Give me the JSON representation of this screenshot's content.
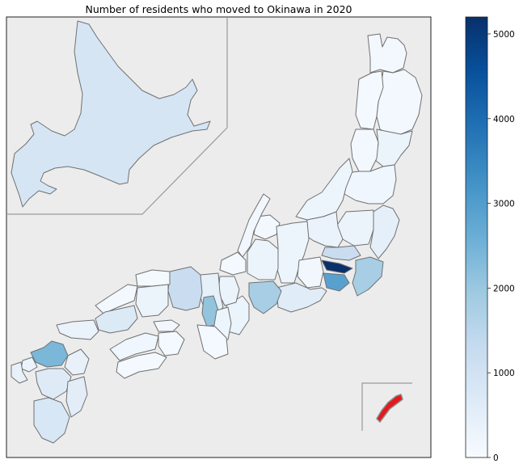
{
  "title": "Number of residents who moved to Okinawa in 2020",
  "colorbar": {
    "min": 0,
    "max": 5200,
    "ticks": [
      "0",
      "1000",
      "2000",
      "3000",
      "4000",
      "5000"
    ],
    "tick_values": [
      0,
      1000,
      2000,
      3000,
      4000,
      5000
    ],
    "colormap": "Blues",
    "colormap_stops": [
      "#f7fbff",
      "#deebf7",
      "#c6dbef",
      "#9ecae1",
      "#6baed6",
      "#4292c6",
      "#2171b5",
      "#08519c",
      "#08306b"
    ]
  },
  "colors": {
    "background": "#ececec",
    "border": "#707070",
    "destination": "#e31a1c"
  },
  "chart_data": {
    "type": "choropleth",
    "title": "Number of residents who moved to Okinawa in 2020",
    "regions": [
      {
        "name": "Hokkaido",
        "value": 900
      },
      {
        "name": "Aomori",
        "value": 120
      },
      {
        "name": "Iwate",
        "value": 110
      },
      {
        "name": "Akita",
        "value": 100
      },
      {
        "name": "Miyagi",
        "value": 300
      },
      {
        "name": "Yamagata",
        "value": 120
      },
      {
        "name": "Fukushima",
        "value": 200
      },
      {
        "name": "Niigata",
        "value": 250
      },
      {
        "name": "Ibaraki",
        "value": 500
      },
      {
        "name": "Tochigi",
        "value": 300
      },
      {
        "name": "Gunma",
        "value": 350
      },
      {
        "name": "Saitama",
        "value": 1200
      },
      {
        "name": "Tokyo",
        "value": 5200
      },
      {
        "name": "Chiba",
        "value": 1800
      },
      {
        "name": "Kanagawa",
        "value": 2900
      },
      {
        "name": "Toyama",
        "value": 120
      },
      {
        "name": "Ishikawa",
        "value": 150
      },
      {
        "name": "Fukui",
        "value": 100
      },
      {
        "name": "Nagano",
        "value": 250
      },
      {
        "name": "Yamanashi",
        "value": 150
      },
      {
        "name": "Gifu",
        "value": 300
      },
      {
        "name": "Shizuoka",
        "value": 600
      },
      {
        "name": "Aichi",
        "value": 1800
      },
      {
        "name": "Mie",
        "value": 300
      },
      {
        "name": "Shiga",
        "value": 300
      },
      {
        "name": "Kyoto",
        "value": 450
      },
      {
        "name": "Osaka",
        "value": 2100
      },
      {
        "name": "Hyogo",
        "value": 1200
      },
      {
        "name": "Nara",
        "value": 250
      },
      {
        "name": "Wakayama",
        "value": 100
      },
      {
        "name": "Tottori",
        "value": 80
      },
      {
        "name": "Shimane",
        "value": 120
      },
      {
        "name": "Okayama",
        "value": 300
      },
      {
        "name": "Hiroshima",
        "value": 700
      },
      {
        "name": "Yamaguchi",
        "value": 350
      },
      {
        "name": "Tokushima",
        "value": 100
      },
      {
        "name": "Kagawa",
        "value": 150
      },
      {
        "name": "Ehime",
        "value": 200
      },
      {
        "name": "Kochi",
        "value": 100
      },
      {
        "name": "Fukuoka",
        "value": 2400
      },
      {
        "name": "Saga",
        "value": 300
      },
      {
        "name": "Nagasaki",
        "value": 400
      },
      {
        "name": "Kumamoto",
        "value": 650
      },
      {
        "name": "Oita",
        "value": 400
      },
      {
        "name": "Miyazaki",
        "value": 550
      },
      {
        "name": "Kagoshima",
        "value": 800
      },
      {
        "name": "Okinawa",
        "value": null,
        "highlight": true
      }
    ]
  }
}
